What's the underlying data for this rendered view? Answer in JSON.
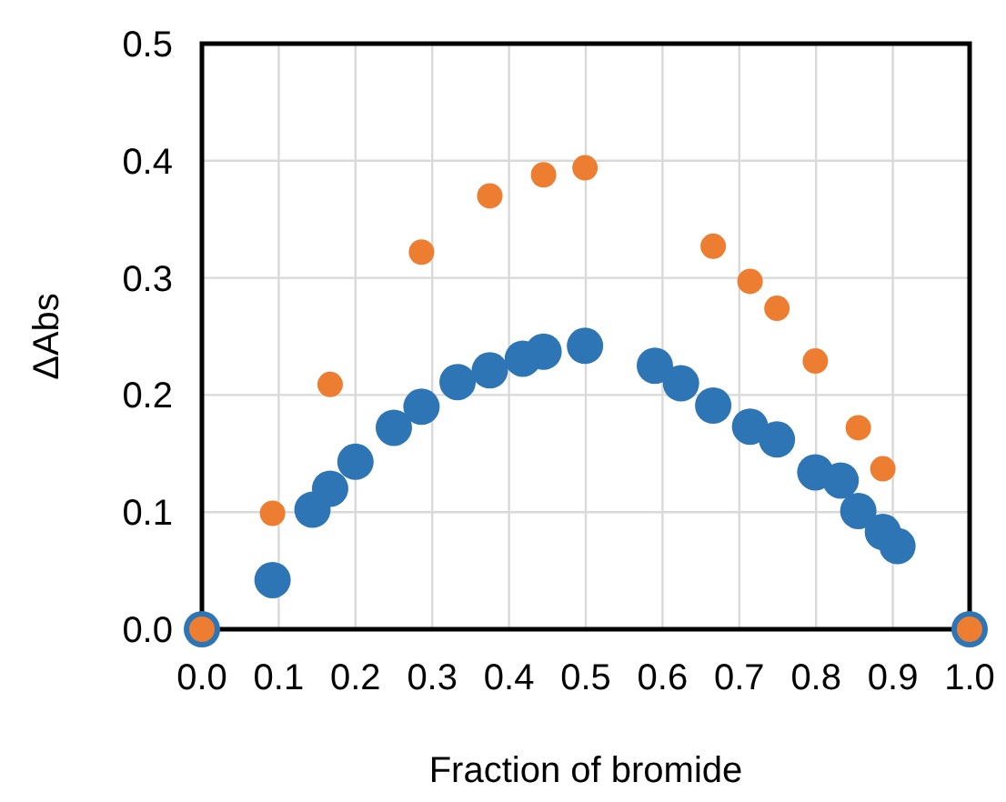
{
  "chart_data": {
    "type": "scatter",
    "xlabel": "Fraction of bromide",
    "ylabel": "ΔAbs",
    "xlim": [
      0,
      1
    ],
    "ylim": [
      0,
      0.5
    ],
    "xticks": [
      {
        "value": 0,
        "label": "0.0"
      },
      {
        "value": 0.1,
        "label": "0.1"
      },
      {
        "value": 0.2,
        "label": "0.2"
      },
      {
        "value": 0.3,
        "label": "0.3"
      },
      {
        "value": 0.4,
        "label": "0.4"
      },
      {
        "value": 0.5,
        "label": "0.5"
      },
      {
        "value": 0.6,
        "label": "0.6"
      },
      {
        "value": 0.7,
        "label": "0.7"
      },
      {
        "value": 0.8,
        "label": "0.8"
      },
      {
        "value": 0.9,
        "label": "0.9"
      },
      {
        "value": 1,
        "label": "1.0"
      }
    ],
    "yticks": [
      {
        "value": 0,
        "label": "0.0"
      },
      {
        "value": 0.1,
        "label": "0.1"
      },
      {
        "value": 0.2,
        "label": "0.2"
      },
      {
        "value": 0.3,
        "label": "0.3"
      },
      {
        "value": 0.4,
        "label": "0.4"
      },
      {
        "value": 0.5,
        "label": "0.5"
      }
    ],
    "grid": true,
    "marker": "circle",
    "series": [
      {
        "color": "#2e75b6",
        "x": [
          0,
          0.092,
          0.144,
          0.167,
          0.2,
          0.25,
          0.286,
          0.333,
          0.375,
          0.418,
          0.445,
          0.499,
          0.59,
          0.624,
          0.666,
          0.714,
          0.749,
          0.799,
          0.832,
          0.855,
          0.887,
          0.906,
          1
        ],
        "values": [
          0,
          0.042,
          0.102,
          0.12,
          0.143,
          0.172,
          0.19,
          0.211,
          0.221,
          0.231,
          0.237,
          0.242,
          0.225,
          0.21,
          0.191,
          0.173,
          0.162,
          0.134,
          0.127,
          0.101,
          0.083,
          0.071,
          0
        ]
      },
      {
        "color": "#ed7d31",
        "x": [
          0,
          0.092,
          0.167,
          0.286,
          0.375,
          0.445,
          0.499,
          0.666,
          0.714,
          0.749,
          0.799,
          0.855,
          0.887,
          1
        ],
        "values": [
          0,
          0.099,
          0.209,
          0.322,
          0.37,
          0.388,
          0.394,
          0.327,
          0.297,
          0.274,
          0.229,
          0.172,
          0.137,
          0
        ]
      }
    ]
  }
}
